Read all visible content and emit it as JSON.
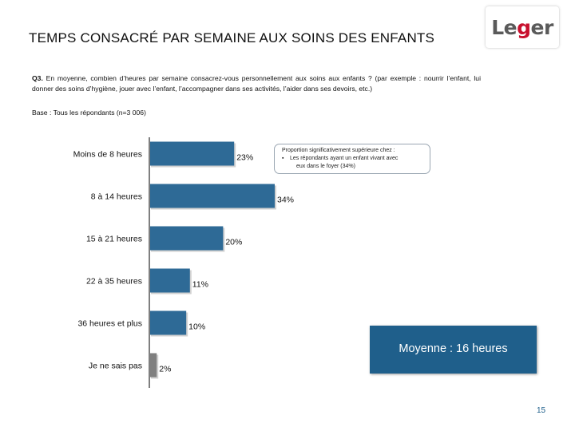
{
  "header": {
    "title": "TEMPS CONSACRÉ PAR SEMAINE AUX SOINS DES ENFANTS",
    "logo_text_part1": "Le",
    "logo_text_part2": "g",
    "logo_text_part3": "er"
  },
  "question": {
    "label": "Q3.",
    "text": "En moyenne, combien d’heures par semaine consacrez-vous personnellement aux soins aux enfants ? (par exemple : nourrir l’enfant, lui donner des soins d’hygiène, jouer avec l’enfant, l’accompagner dans ses activités, l’aider dans ses devoirs, etc.)",
    "base": "Base : Tous les répondants (n=3 006)"
  },
  "note": {
    "line1": "Proportion significativement supérieure chez :",
    "bullet": "▪",
    "line2": "Les répondants ayant un enfant vivant avec",
    "line3": "eux dans le foyer (34%)"
  },
  "average_box": {
    "text": "Moyenne : 16 heures"
  },
  "page_number": "15",
  "colors": {
    "bar": "#2e6a96",
    "bar_gray": "#7f7f7f",
    "axis": "#7f7f7f",
    "accent": "#1f5f8b",
    "logo_red": "#c8102e"
  },
  "chart_data": {
    "type": "bar",
    "orientation": "horizontal",
    "categories": [
      "Moins de 8 heures",
      "8 à 14 heures",
      "15 à 21 heures",
      "22 à 35 heures",
      "36 heures et plus",
      "Je ne sais pas"
    ],
    "values": [
      23,
      34,
      20,
      11,
      10,
      2
    ],
    "data_labels": [
      "23%",
      "34%",
      "20%",
      "11%",
      "10%",
      "2%"
    ],
    "highlight_gray": [
      false,
      false,
      false,
      false,
      false,
      true
    ],
    "unit": "%",
    "xlim": [
      0,
      34
    ],
    "grid": false,
    "legend": "none"
  }
}
